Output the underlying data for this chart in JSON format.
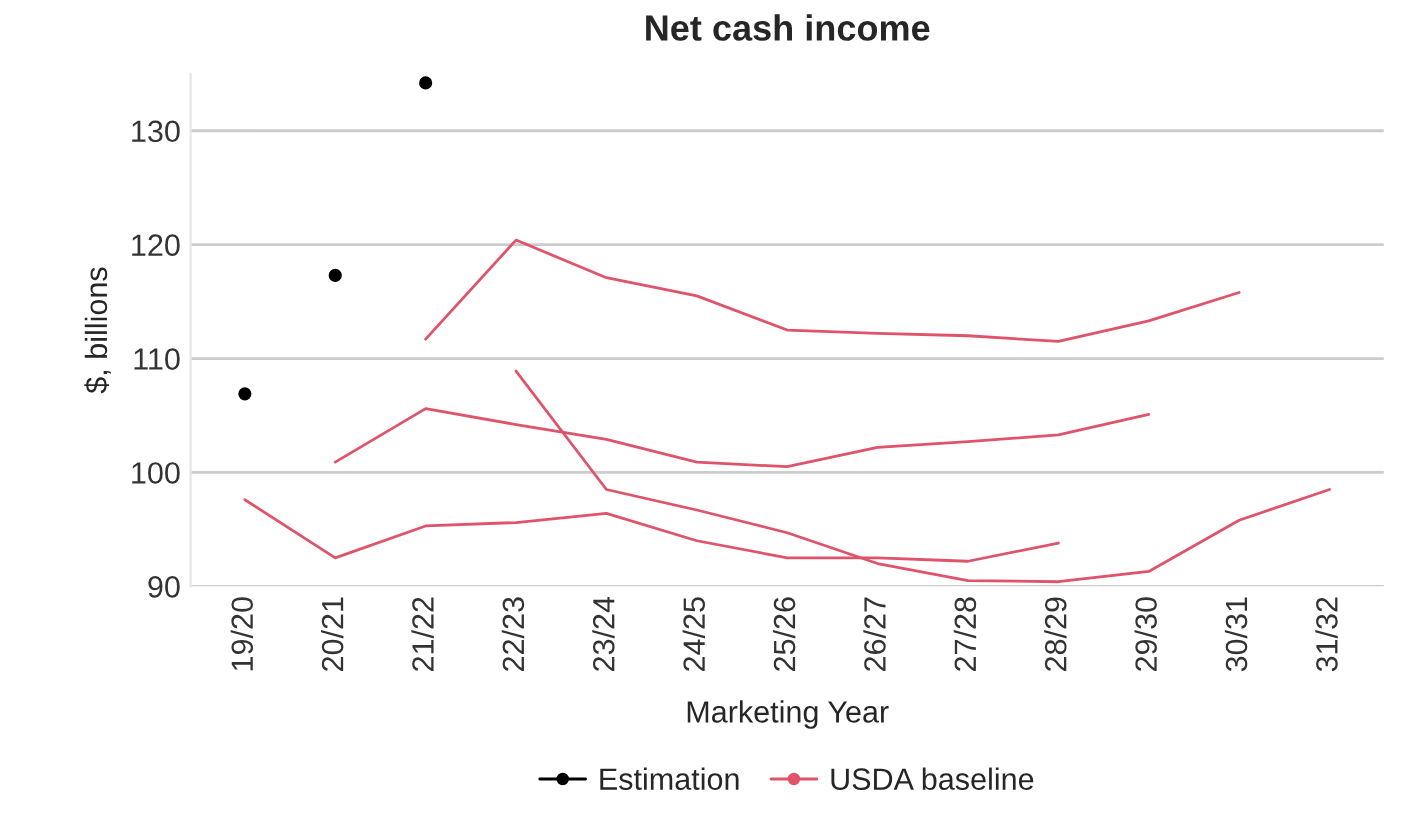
{
  "chart_data": {
    "type": "line",
    "title": "Net cash income",
    "xlabel": "Marketing Year",
    "ylabel": "$, billions",
    "categories": [
      "19/20",
      "20/21",
      "21/22",
      "22/23",
      "23/24",
      "24/25",
      "25/26",
      "26/27",
      "27/28",
      "28/29",
      "29/30",
      "30/31",
      "31/32"
    ],
    "series": [
      {
        "name": "Estimation",
        "type": "scatter",
        "marker": "circle",
        "color": "#000000",
        "values": [
          106.9,
          117.3,
          134.2,
          null,
          null,
          null,
          null,
          null,
          null,
          null,
          null,
          null,
          null
        ]
      },
      {
        "name": "USDA baseline",
        "color": "#df536b",
        "values": [
          null,
          null,
          111.7,
          120.4,
          117.1,
          115.5,
          112.5,
          112.2,
          112.0,
          111.5,
          113.3,
          115.8,
          null
        ]
      },
      {
        "color": "#df536b",
        "values": [
          null,
          100.9,
          105.6,
          104.2,
          102.9,
          100.9,
          100.5,
          102.2,
          102.7,
          103.3,
          105.1,
          null,
          null
        ]
      },
      {
        "color": "#df536b",
        "values": [
          97.6,
          92.5,
          95.3,
          95.6,
          96.4,
          94.0,
          92.5,
          92.5,
          92.2,
          93.8,
          null,
          null,
          null
        ]
      },
      {
        "color": "#df536b",
        "values": [
          null,
          null,
          null,
          108.9,
          98.5,
          96.7,
          94.7,
          92.0,
          90.5,
          90.4,
          91.3,
          95.8,
          98.5
        ]
      }
    ],
    "ylim": [
      90,
      135
    ],
    "yticks": [
      90,
      100,
      110,
      120,
      130
    ],
    "grid": "y",
    "legend": "bottom"
  }
}
